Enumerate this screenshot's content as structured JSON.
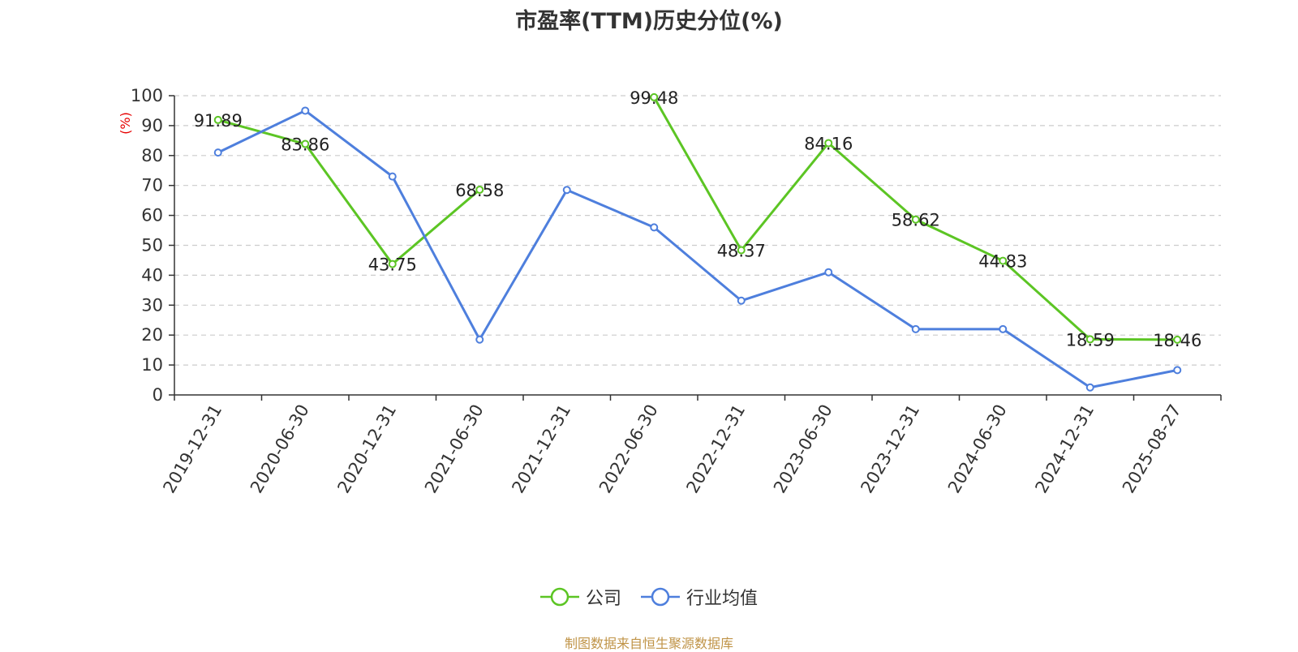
{
  "chart_data": {
    "type": "line",
    "title": "市盈率(TTM)历史分位(%)",
    "ylabel": "(%)",
    "ylim": [
      0,
      100
    ],
    "yticks": [
      0,
      10,
      20,
      30,
      40,
      50,
      60,
      70,
      80,
      90,
      100
    ],
    "categories": [
      "2019-12-31",
      "2020-06-30",
      "2020-12-31",
      "2021-06-30",
      "2021-12-31",
      "2022-06-30",
      "2022-12-31",
      "2023-06-30",
      "2023-12-31",
      "2024-06-30",
      "2024-12-31",
      "2025-08-27"
    ],
    "grid": true,
    "legend_position": "bottom",
    "series": [
      {
        "name": "公司",
        "color": "#5cc524",
        "show_labels": true,
        "values": [
          91.89,
          83.86,
          43.75,
          68.58,
          null,
          99.48,
          48.37,
          84.16,
          58.62,
          44.83,
          18.59,
          18.46
        ]
      },
      {
        "name": "行业均值",
        "color": "#4e7fdd",
        "show_labels": false,
        "values": [
          81,
          95,
          73,
          18.5,
          68.5,
          56,
          31.5,
          41,
          22,
          22,
          2.5,
          8.3
        ]
      }
    ]
  },
  "source_note": "制图数据来自恒生聚源数据库"
}
